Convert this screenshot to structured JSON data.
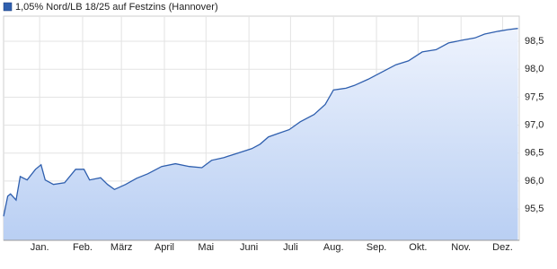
{
  "chart_data": {
    "type": "line",
    "title": "1,05% Nord/LB 18/25 auf Festzins (Hannover)",
    "series": [
      {
        "name": "1,05% Nord/LB 18/25 auf Festzins (Hannover)",
        "color": "#2f5fae",
        "x": [
          -26,
          -23,
          -21,
          -17,
          -14,
          -9,
          -3,
          1,
          4,
          10,
          18,
          26,
          32,
          36,
          44,
          49,
          54,
          62,
          70,
          78,
          88,
          98,
          108,
          117,
          124,
          133,
          143,
          153,
          159,
          165,
          172,
          180,
          188,
          198,
          206,
          212,
          221,
          227,
          237,
          247,
          257,
          266,
          276,
          286,
          295,
          305,
          314,
          321,
          331,
          338,
          345
        ],
        "values": [
          95.37,
          95.73,
          95.77,
          95.66,
          96.08,
          96.02,
          96.21,
          96.29,
          96.02,
          95.94,
          95.97,
          96.21,
          96.21,
          96.02,
          96.06,
          95.94,
          95.85,
          95.94,
          96.05,
          96.13,
          96.26,
          96.31,
          96.26,
          96.24,
          96.37,
          96.42,
          96.5,
          96.58,
          96.66,
          96.79,
          96.85,
          96.92,
          97.06,
          97.19,
          97.37,
          97.63,
          97.66,
          97.71,
          97.82,
          97.95,
          98.08,
          98.15,
          98.31,
          98.35,
          98.47,
          98.52,
          98.56,
          98.63,
          98.68,
          98.71,
          98.73
        ]
      }
    ],
    "xlim": [
      -26,
      346
    ],
    "xticks": [
      {
        "value": 0,
        "label": "Jan."
      },
      {
        "value": 31,
        "label": "Feb."
      },
      {
        "value": 59,
        "label": "März"
      },
      {
        "value": 90,
        "label": "April"
      },
      {
        "value": 120,
        "label": "Mai"
      },
      {
        "value": 151,
        "label": "Juni"
      },
      {
        "value": 181,
        "label": "Juli"
      },
      {
        "value": 212,
        "label": "Aug."
      },
      {
        "value": 243,
        "label": "Sep."
      },
      {
        "value": 273,
        "label": "Okt."
      },
      {
        "value": 304,
        "label": "Nov."
      },
      {
        "value": 334,
        "label": "Dez."
      }
    ],
    "ylim": [
      94.94,
      98.95
    ],
    "yticks": [
      {
        "value": 95.5,
        "label": "95,5"
      },
      {
        "value": 96.0,
        "label": "96,0"
      },
      {
        "value": 96.5,
        "label": "96,5"
      },
      {
        "value": 97.0,
        "label": "97,0"
      },
      {
        "value": 97.5,
        "label": "97,5"
      },
      {
        "value": 98.0,
        "label": "98,0"
      },
      {
        "value": 98.5,
        "label": "98,5"
      }
    ],
    "grid": true,
    "legend": "top-left"
  }
}
